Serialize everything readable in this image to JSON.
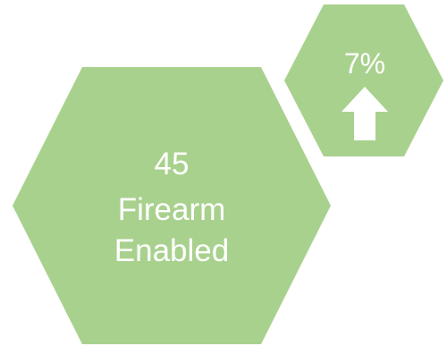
{
  "large_hexagon": {
    "value": "45",
    "line1": "Firearm",
    "line2": "Enabled"
  },
  "small_hexagon": {
    "percent": "7%",
    "trend_icon": "up-arrow-icon"
  },
  "colors": {
    "hexagon_fill": "#a9d18e",
    "text": "#ffffff",
    "background": "#ffffff"
  }
}
